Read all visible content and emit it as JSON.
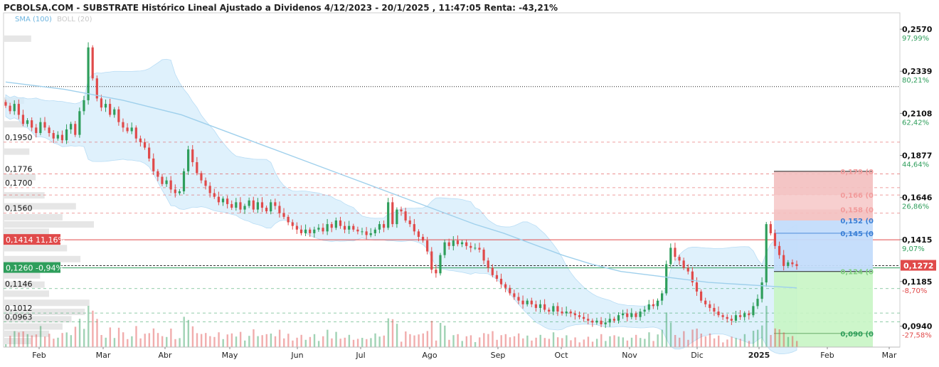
{
  "title": "PCBOLSA.COM - SUBSTRATE Histórico Lineal Ajustado a Dividenos 4/12/2023 - 20/1/2025 , 11:47:05 Renta: -43,21%",
  "indicators": {
    "sma": "SMA (100)",
    "boll": "BOLL (20)"
  },
  "colors": {
    "up": "#2e9e5b",
    "down": "#e04a4a",
    "sma": "#9fd0ec",
    "band": "#d4ecfb",
    "profit": "#c8f5c4",
    "loss": "#f3bfbf",
    "entry": "#c3dcfb"
  },
  "chart_data": {
    "type": "candlestick",
    "title": "PCBOLSA.COM - SUBSTRATE Histórico Lineal Ajustado a Dividenos 4/12/2023 - 20/1/2025 , 11:47:05 Renta: -43,21%",
    "ylim": [
      0.0825,
      0.266
    ],
    "x_ticks": [
      "Feb",
      "Mar",
      "Abr",
      "May",
      "Jun",
      "Jul",
      "Ago",
      "Sep",
      "Oct",
      "Nov",
      "Dic",
      "2025",
      "Feb",
      "Mar"
    ],
    "y_ticks": [
      {
        "value": 0.257,
        "label": "0,2570",
        "pct": "97,99%"
      },
      {
        "value": 0.2339,
        "label": "0,2339",
        "pct": "80,21%"
      },
      {
        "value": 0.2108,
        "label": "0,2108",
        "pct": "62,42%"
      },
      {
        "value": 0.1877,
        "label": "0,1877",
        "pct": "44,64%"
      },
      {
        "value": 0.1646,
        "label": "0,1646",
        "pct": "26,86%"
      },
      {
        "value": 0.1415,
        "label": "0,1415",
        "pct": "9,07%"
      },
      {
        "value": 0.1185,
        "label": "0,1185",
        "pct": "-8,70%"
      },
      {
        "value": 0.094,
        "label": "0,0940",
        "pct": "-27,58%"
      }
    ],
    "last_price": {
      "value": 0.1272,
      "label": "0,1272"
    },
    "left_levels": [
      {
        "value": 0.195,
        "label": "0,1950"
      },
      {
        "value": 0.1776,
        "label": "0,1776"
      },
      {
        "value": 0.17,
        "label": "0,1700"
      },
      {
        "value": 0.156,
        "label": "0,1560"
      },
      {
        "value": 0.1146,
        "label": "0,1146"
      },
      {
        "value": 0.1012,
        "label": "0,1012"
      },
      {
        "value": 0.0963,
        "label": "0,0963"
      }
    ],
    "marked_levels": [
      {
        "value": 0.1414,
        "label": "0,1414",
        "pct": "11,16%",
        "color": "#e04a4a"
      },
      {
        "value": 0.126,
        "label": "0,1260",
        "pct": "-0,94%",
        "color": "#2e9e5b"
      }
    ],
    "target_levels": [
      {
        "value": 0.179,
        "label": "0,179 (0",
        "color": "#f29b9b"
      },
      {
        "value": 0.166,
        "label": "0,166 (0",
        "color": "#f29b9b"
      },
      {
        "value": 0.158,
        "label": "0,158 (0",
        "color": "#f29b9b"
      },
      {
        "value": 0.152,
        "label": "0,152 (0",
        "color": "#3a7fd6"
      },
      {
        "value": 0.145,
        "label": "0,145 (0",
        "color": "#3a7fd6"
      },
      {
        "value": 0.124,
        "label": "0,124 (0",
        "color": "#7fcf7f"
      },
      {
        "value": 0.09,
        "label": "0,090 (0",
        "color": "#2e9e5b"
      }
    ],
    "volume_ladder": [
      {
        "price": 0.252,
        "size": 0.3
      },
      {
        "price": 0.218,
        "size": 0.22
      },
      {
        "price": 0.205,
        "size": 0.25
      },
      {
        "price": 0.19,
        "size": 0.28
      },
      {
        "price": 0.176,
        "size": 0.35
      },
      {
        "price": 0.166,
        "size": 0.45
      },
      {
        "price": 0.16,
        "size": 0.8
      },
      {
        "price": 0.154,
        "size": 0.65
      },
      {
        "price": 0.15,
        "size": 1.0
      },
      {
        "price": 0.146,
        "size": 0.5
      },
      {
        "price": 0.137,
        "size": 0.7
      },
      {
        "price": 0.131,
        "size": 0.85
      },
      {
        "price": 0.122,
        "size": 0.4
      },
      {
        "price": 0.117,
        "size": 0.45
      },
      {
        "price": 0.112,
        "size": 0.5
      },
      {
        "price": 0.107,
        "size": 0.95
      },
      {
        "price": 0.102,
        "size": 0.9
      },
      {
        "price": 0.098,
        "size": 0.75
      },
      {
        "price": 0.094,
        "size": 0.65
      },
      {
        "price": 0.09,
        "size": 0.5
      },
      {
        "price": 0.086,
        "size": 0.3
      }
    ],
    "sma_points": [
      0.228,
      0.226,
      0.224,
      0.221,
      0.218,
      0.214,
      0.21,
      0.204,
      0.198,
      0.192,
      0.186,
      0.18,
      0.174,
      0.168,
      0.162,
      0.156,
      0.15,
      0.145,
      0.139,
      0.133,
      0.128,
      0.124,
      0.122,
      0.12,
      0.118,
      0.117,
      0.116,
      0.115
    ],
    "closes": [
      0.215,
      0.212,
      0.216,
      0.21,
      0.205,
      0.207,
      0.203,
      0.2,
      0.206,
      0.203,
      0.2,
      0.197,
      0.199,
      0.196,
      0.202,
      0.205,
      0.199,
      0.212,
      0.218,
      0.247,
      0.23,
      0.219,
      0.214,
      0.216,
      0.21,
      0.213,
      0.206,
      0.203,
      0.201,
      0.203,
      0.197,
      0.195,
      0.192,
      0.186,
      0.179,
      0.176,
      0.172,
      0.174,
      0.169,
      0.167,
      0.168,
      0.179,
      0.191,
      0.184,
      0.178,
      0.174,
      0.171,
      0.167,
      0.165,
      0.162,
      0.164,
      0.161,
      0.159,
      0.162,
      0.158,
      0.16,
      0.163,
      0.158,
      0.162,
      0.159,
      0.157,
      0.162,
      0.16,
      0.156,
      0.154,
      0.151,
      0.149,
      0.147,
      0.145,
      0.147,
      0.145,
      0.147,
      0.148,
      0.146,
      0.15,
      0.148,
      0.152,
      0.149,
      0.147,
      0.149,
      0.147,
      0.146,
      0.146,
      0.144,
      0.145,
      0.147,
      0.15,
      0.148,
      0.162,
      0.15,
      0.158,
      0.157,
      0.152,
      0.15,
      0.146,
      0.143,
      0.141,
      0.135,
      0.125,
      0.123,
      0.133,
      0.14,
      0.138,
      0.141,
      0.139,
      0.14,
      0.138,
      0.137,
      0.137,
      0.136,
      0.13,
      0.126,
      0.122,
      0.12,
      0.117,
      0.115,
      0.112,
      0.11,
      0.108,
      0.106,
      0.108,
      0.106,
      0.104,
      0.106,
      0.103,
      0.102,
      0.105,
      0.102,
      0.101,
      0.102,
      0.101,
      0.1,
      0.099,
      0.098,
      0.097,
      0.096,
      0.097,
      0.095,
      0.096,
      0.098,
      0.097,
      0.1,
      0.101,
      0.099,
      0.101,
      0.099,
      0.102,
      0.103,
      0.106,
      0.105,
      0.108,
      0.112,
      0.128,
      0.137,
      0.132,
      0.13,
      0.126,
      0.124,
      0.118,
      0.113,
      0.108,
      0.106,
      0.104,
      0.102,
      0.1,
      0.099,
      0.098,
      0.097,
      0.1,
      0.099,
      0.101,
      0.1,
      0.105,
      0.109,
      0.118,
      0.15,
      0.145,
      0.138,
      0.133,
      0.127,
      0.129,
      0.128,
      0.127
    ]
  }
}
